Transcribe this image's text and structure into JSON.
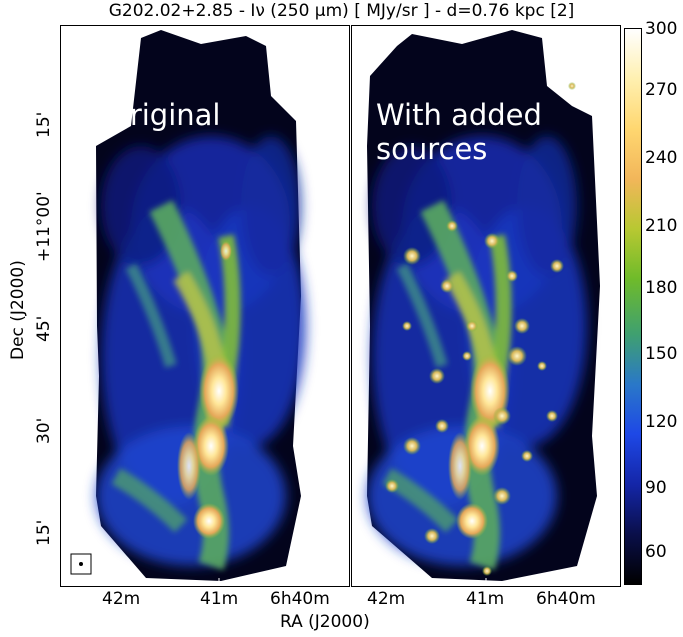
{
  "figure": {
    "title": "G202.02+2.85 - Iν (250 μm) [ MJy/sr ]  -  d=0.76 kpc [2]",
    "panels": [
      {
        "label": "Original",
        "has_point_sources": false
      },
      {
        "label": "With added\nsources",
        "has_point_sources": true
      }
    ],
    "x_axis": {
      "label": "RA (J2000)",
      "ticks": [
        "42m",
        "41m",
        "6h40m"
      ]
    },
    "y_axis": {
      "label": "Dec (J2000)",
      "ticks": [
        "15'",
        "+11°00'",
        "45'",
        "30'",
        "15'"
      ]
    },
    "colorbar": {
      "ticks": [
        "300",
        "270",
        "240",
        "210",
        "180",
        "150",
        "120",
        "90",
        "60"
      ],
      "colormap": [
        "#000000",
        "#0a0f4a",
        "#1426a8",
        "#1e48e6",
        "#2a78c8",
        "#3fa070",
        "#6fbb2a",
        "#b8c832",
        "#f2b65a",
        "#ffd770",
        "#fff0b0",
        "#ffffff"
      ]
    },
    "beam_marker": "beam-circle-icon"
  }
}
